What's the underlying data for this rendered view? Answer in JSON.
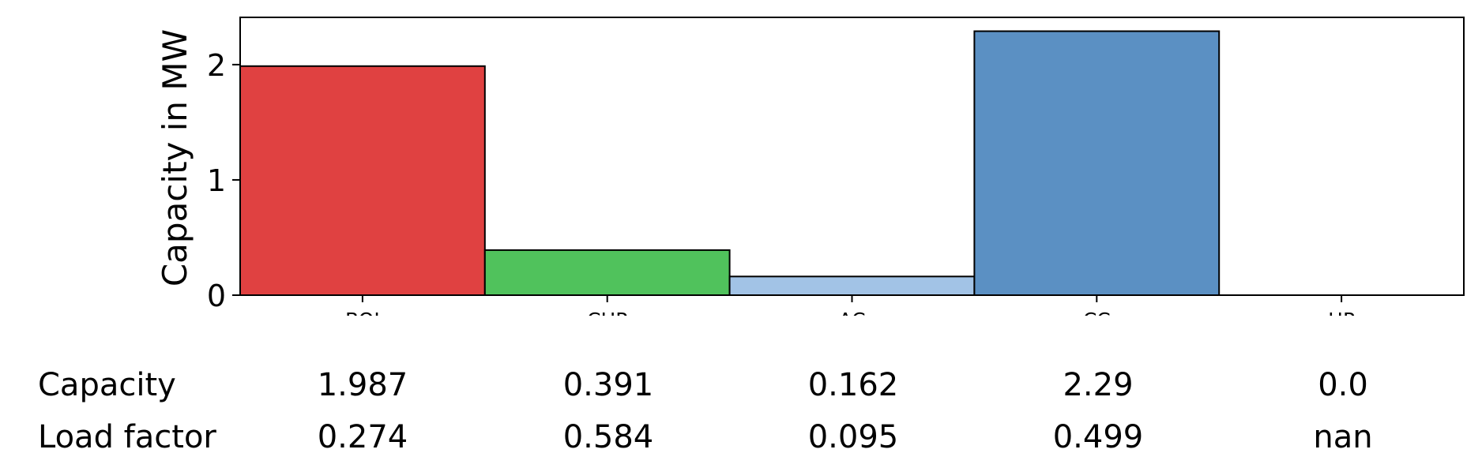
{
  "chart_data": {
    "type": "bar",
    "categories": [
      "BOI",
      "CHP",
      "AC",
      "CC",
      "HP"
    ],
    "values": [
      1.987,
      0.391,
      0.162,
      2.29,
      0.0
    ],
    "colors": [
      "#e04141",
      "#50c25c",
      "#a2c3e6",
      "#5b90c3",
      "#ffffff"
    ],
    "ylabel": "Capacity in MW",
    "ylim": [
      0,
      2.41
    ],
    "yticks": [
      0,
      1,
      2
    ],
    "grid": false
  },
  "table": {
    "rows": [
      {
        "label": "Capacity",
        "values": [
          "1.987",
          "0.391",
          "0.162",
          "2.29",
          "0.0"
        ]
      },
      {
        "label": "Load factor",
        "values": [
          "0.274",
          "0.584",
          "0.095",
          "0.499",
          "nan"
        ]
      }
    ]
  }
}
